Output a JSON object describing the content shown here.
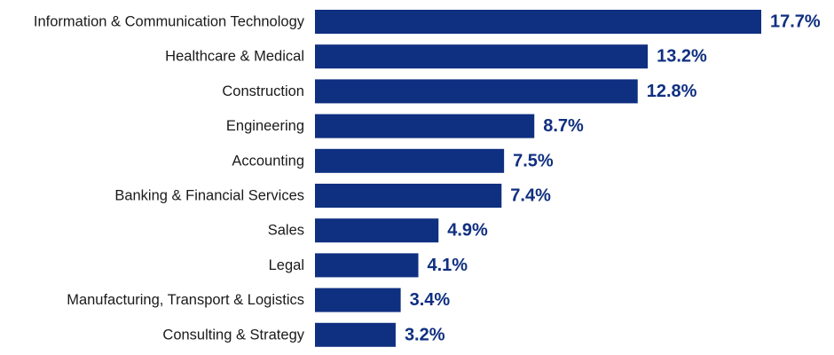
{
  "chart_data": {
    "type": "bar",
    "orientation": "horizontal",
    "title": "",
    "xlabel": "",
    "ylabel": "",
    "categories": [
      "Information & Communication Technology",
      "Healthcare & Medical",
      "Construction",
      "Engineering",
      "Accounting",
      "Banking & Financial Services",
      "Sales",
      "Legal",
      "Manufacturing, Transport & Logistics",
      "Consulting & Strategy"
    ],
    "values": [
      17.7,
      13.2,
      12.8,
      8.7,
      7.5,
      7.4,
      4.9,
      4.1,
      3.4,
      3.2
    ],
    "value_labels": [
      "17.7%",
      "13.2%",
      "12.8%",
      "8.7%",
      "7.5%",
      "7.4%",
      "4.9%",
      "4.1%",
      "3.4%",
      "3.2%"
    ],
    "xlim": [
      0,
      17.7
    ],
    "grid": false,
    "bar_color": "#0f2f80",
    "value_label_color": "#0f2f80"
  }
}
